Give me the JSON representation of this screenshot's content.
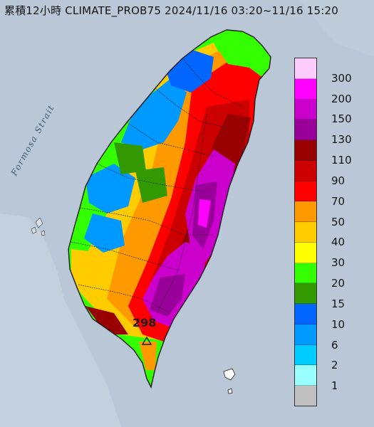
{
  "title": "累積12小時 CLIMATE_PROB75 2024/11/16 03:20~11/16 15:20",
  "map": {
    "sea_label": "Formosa Strait",
    "max_value_label": "298"
  },
  "legend": {
    "labels": [
      "300",
      "200",
      "150",
      "130",
      "110",
      "90",
      "70",
      "50",
      "40",
      "30",
      "20",
      "15",
      "10",
      "6",
      "2",
      "1"
    ],
    "colors": [
      "#ffccff",
      "#ff00ff",
      "#cc00cc",
      "#990099",
      "#990000",
      "#cc0000",
      "#ff0000",
      "#ff9900",
      "#ffcc00",
      "#ffff00",
      "#33ff00",
      "#339900",
      "#0066ff",
      "#0099ff",
      "#00ccff",
      "#99ffff",
      "#c0c0c0"
    ]
  },
  "colors": {
    "sea": "#b9c7d6",
    "land": "#d7e0e8"
  }
}
